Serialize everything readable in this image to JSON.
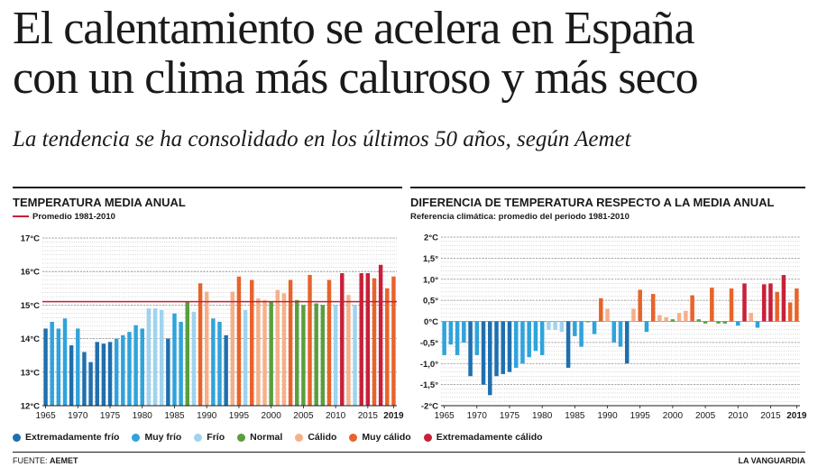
{
  "header": {
    "title_line1": "El calentamiento se acelera en España",
    "title_line2": "con un clima más caluroso y más seco",
    "subtitle": "La tendencia se ha consolidado en los últimos 50 años, según Aemet"
  },
  "colors": {
    "Extremadamente frío": "#1f6fae",
    "Muy frío": "#2fa3dc",
    "Frío": "#9fd3ee",
    "Normal": "#5a9e3e",
    "Cálido": "#f5b08a",
    "Muy cálido": "#e8632a",
    "Extremadamente cálido": "#c8203a",
    "mean_line": "#c8203a"
  },
  "legend": {
    "items": [
      "Extremadamente frío",
      "Muy frío",
      "Frío",
      "Normal",
      "Cálido",
      "Muy cálido",
      "Extremadamente cálido"
    ]
  },
  "footer": {
    "source_label": "FUENTE:",
    "source": "AEMET",
    "brand": "LA VANGUARDIA"
  },
  "chart_data": [
    {
      "type": "bar",
      "title": "TEMPERATURA MEDIA ANUAL",
      "mean_label": "Promedio 1981-2010",
      "mean_value": 15.1,
      "ylabel": "°C",
      "ylim": [
        12,
        17
      ],
      "yticks": [
        "12°C",
        "13°C",
        "14°C",
        "15°C",
        "16°C",
        "17°C"
      ],
      "ytick_values": [
        12,
        13,
        14,
        15,
        16,
        17
      ],
      "xticks": [
        "1965",
        "1970",
        "1975",
        "1980",
        "1985",
        "1990",
        "1995",
        "2000",
        "2005",
        "2010",
        "2015",
        "2019"
      ],
      "xtick_values": [
        1965,
        1970,
        1975,
        1980,
        1985,
        1990,
        1995,
        2000,
        2005,
        2010,
        2015,
        2019
      ],
      "grid": true,
      "years": [
        1965,
        1966,
        1967,
        1968,
        1969,
        1970,
        1971,
        1972,
        1973,
        1974,
        1975,
        1976,
        1977,
        1978,
        1979,
        1980,
        1981,
        1982,
        1983,
        1984,
        1985,
        1986,
        1987,
        1988,
        1989,
        1990,
        1991,
        1992,
        1993,
        1994,
        1995,
        1996,
        1997,
        1998,
        1999,
        2000,
        2001,
        2002,
        2003,
        2004,
        2005,
        2006,
        2007,
        2008,
        2009,
        2010,
        2011,
        2012,
        2013,
        2014,
        2015,
        2016,
        2017,
        2018,
        2019
      ],
      "values": [
        14.3,
        14.5,
        14.3,
        14.6,
        13.8,
        14.3,
        13.6,
        13.3,
        13.9,
        13.85,
        13.9,
        14.0,
        14.1,
        14.2,
        14.4,
        14.3,
        14.9,
        14.9,
        14.85,
        14.0,
        14.75,
        14.5,
        15.1,
        14.8,
        15.65,
        15.4,
        14.6,
        14.5,
        14.1,
        15.4,
        15.85,
        14.85,
        15.75,
        15.2,
        15.15,
        15.1,
        15.45,
        15.35,
        15.75,
        15.15,
        15.0,
        15.9,
        15.05,
        15.0,
        15.75,
        15.0,
        15.95,
        15.3,
        15.0,
        15.95,
        15.95,
        15.8,
        16.2,
        15.5,
        15.85
      ],
      "categories": [
        "Extremadamente frío",
        "Muy frío",
        "Muy frío",
        "Muy frío",
        "Extremadamente frío",
        "Muy frío",
        "Extremadamente frío",
        "Extremadamente frío",
        "Extremadamente frío",
        "Extremadamente frío",
        "Extremadamente frío",
        "Muy frío",
        "Muy frío",
        "Muy frío",
        "Muy frío",
        "Muy frío",
        "Frío",
        "Frío",
        "Frío",
        "Extremadamente frío",
        "Muy frío",
        "Muy frío",
        "Normal",
        "Frío",
        "Muy cálido",
        "Cálido",
        "Muy frío",
        "Muy frío",
        "Extremadamente frío",
        "Cálido",
        "Muy cálido",
        "Frío",
        "Muy cálido",
        "Cálido",
        "Cálido",
        "Normal",
        "Cálido",
        "Cálido",
        "Muy cálido",
        "Normal",
        "Normal",
        "Muy cálido",
        "Normal",
        "Normal",
        "Muy cálido",
        "Frío",
        "Extremadamente cálido",
        "Cálido",
        "Frío",
        "Extremadamente cálido",
        "Extremadamente cálido",
        "Muy cálido",
        "Extremadamente cálido",
        "Muy cálido",
        "Muy cálido"
      ]
    },
    {
      "type": "bar",
      "title": "DIFERENCIA DE TEMPERATURA RESPECTO A LA MEDIA ANUAL",
      "subtitle": "Referencia climática: promedio del periodo 1981-2010",
      "ylabel": "°C",
      "ylim": [
        -2,
        2
      ],
      "yticks": [
        "-2°C",
        "-1,5°",
        "-1,0°",
        "-0,5°",
        "0°C",
        "0,5°",
        "1,0°",
        "1,5°",
        "2°C"
      ],
      "ytick_values": [
        -2,
        -1.5,
        -1,
        -0.5,
        0,
        0.5,
        1,
        1.5,
        2
      ],
      "xticks": [
        "1965",
        "1970",
        "1975",
        "1980",
        "1985",
        "1990",
        "1995",
        "2000",
        "2005",
        "2010",
        "2015",
        "2019"
      ],
      "xtick_values": [
        1965,
        1970,
        1975,
        1980,
        1985,
        1990,
        1995,
        2000,
        2005,
        2010,
        2015,
        2019
      ],
      "grid": true,
      "years": [
        1965,
        1966,
        1967,
        1968,
        1969,
        1970,
        1971,
        1972,
        1973,
        1974,
        1975,
        1976,
        1977,
        1978,
        1979,
        1980,
        1981,
        1982,
        1983,
        1984,
        1985,
        1986,
        1987,
        1988,
        1989,
        1990,
        1991,
        1992,
        1993,
        1994,
        1995,
        1996,
        1997,
        1998,
        1999,
        2000,
        2001,
        2002,
        2003,
        2004,
        2005,
        2006,
        2007,
        2008,
        2009,
        2010,
        2011,
        2012,
        2013,
        2014,
        2015,
        2016,
        2017,
        2018,
        2019
      ],
      "values": [
        -0.8,
        -0.55,
        -0.8,
        -0.5,
        -1.3,
        -0.8,
        -1.5,
        -1.75,
        -1.3,
        -1.25,
        -1.2,
        -1.1,
        -1.0,
        -0.85,
        -0.7,
        -0.8,
        -0.2,
        -0.2,
        -0.25,
        -1.1,
        -0.35,
        -0.6,
        0.0,
        -0.3,
        0.55,
        0.3,
        -0.5,
        -0.6,
        -1.0,
        0.3,
        0.75,
        -0.25,
        0.65,
        0.15,
        0.1,
        0.05,
        0.2,
        0.25,
        0.62,
        0.05,
        -0.05,
        0.8,
        -0.05,
        -0.05,
        0.78,
        -0.1,
        0.9,
        0.2,
        -0.15,
        0.88,
        0.9,
        0.7,
        1.1,
        0.45,
        0.78
      ],
      "categories": [
        "Muy frío",
        "Muy frío",
        "Muy frío",
        "Muy frío",
        "Extremadamente frío",
        "Muy frío",
        "Extremadamente frío",
        "Extremadamente frío",
        "Extremadamente frío",
        "Extremadamente frío",
        "Extremadamente frío",
        "Muy frío",
        "Muy frío",
        "Muy frío",
        "Muy frío",
        "Muy frío",
        "Frío",
        "Frío",
        "Frío",
        "Extremadamente frío",
        "Muy frío",
        "Muy frío",
        "Normal",
        "Muy frío",
        "Muy cálido",
        "Cálido",
        "Muy frío",
        "Muy frío",
        "Extremadamente frío",
        "Cálido",
        "Muy cálido",
        "Muy frío",
        "Muy cálido",
        "Cálido",
        "Cálido",
        "Normal",
        "Cálido",
        "Cálido",
        "Muy cálido",
        "Normal",
        "Normal",
        "Muy cálido",
        "Normal",
        "Normal",
        "Muy cálido",
        "Muy frío",
        "Extremadamente cálido",
        "Cálido",
        "Muy frío",
        "Extremadamente cálido",
        "Extremadamente cálido",
        "Muy cálido",
        "Extremadamente cálido",
        "Muy cálido",
        "Muy cálido"
      ]
    }
  ]
}
